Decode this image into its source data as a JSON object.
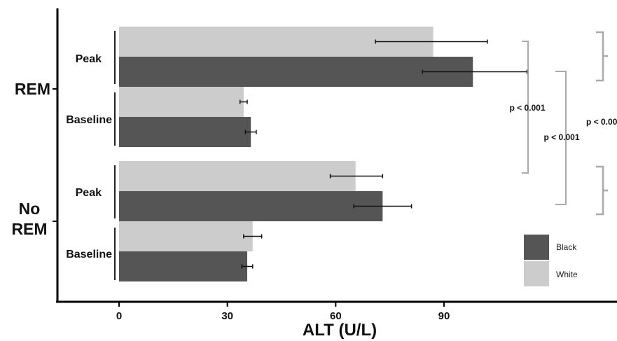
{
  "chart_data": {
    "type": "bar",
    "orientation": "horizontal",
    "xlabel": "ALT (U/L)",
    "x_ticks": [
      0,
      30,
      60,
      90
    ],
    "xlim": [
      0,
      137
    ],
    "groups": [
      {
        "label": "REM",
        "subgroups": [
          {
            "label": "Peak",
            "bars": [
              {
                "series": "White",
                "value": 87,
                "err_low": 71,
                "err_high": 102
              },
              {
                "series": "Black",
                "value": 98,
                "err_low": 84,
                "err_high": 113
              }
            ]
          },
          {
            "label": "Baseline",
            "bars": [
              {
                "series": "White",
                "value": 34.5,
                "err_low": 33.5,
                "err_high": 35.5
              },
              {
                "series": "Black",
                "value": 36.5,
                "err_low": 35,
                "err_high": 38
              }
            ]
          }
        ]
      },
      {
        "label_lines": [
          "No",
          "REM"
        ],
        "subgroups": [
          {
            "label": "Peak",
            "bars": [
              {
                "series": "White",
                "value": 65.5,
                "err_low": 58.5,
                "err_high": 73
              },
              {
                "series": "Black",
                "value": 73,
                "err_low": 65,
                "err_high": 81
              }
            ]
          },
          {
            "label": "Baseline",
            "bars": [
              {
                "series": "White",
                "value": 37,
                "err_low": 34.5,
                "err_high": 39.5
              },
              {
                "series": "Black",
                "value": 35.5,
                "err_low": 34,
                "err_high": 37
              }
            ]
          }
        ]
      }
    ],
    "legend": {
      "placement": "bottom-right",
      "entries": [
        {
          "name": "Black",
          "color": "#555555"
        },
        {
          "name": "White",
          "color": "#cccccc"
        }
      ]
    },
    "significance": [
      {
        "label": "p < 0.001"
      },
      {
        "label": "p < 0.001"
      },
      {
        "label": "p < 0.00"
      }
    ],
    "colors": {
      "Black": "#555555",
      "White": "#cccccc",
      "axis": "#000000",
      "bracket": "#aaaaaa"
    }
  }
}
